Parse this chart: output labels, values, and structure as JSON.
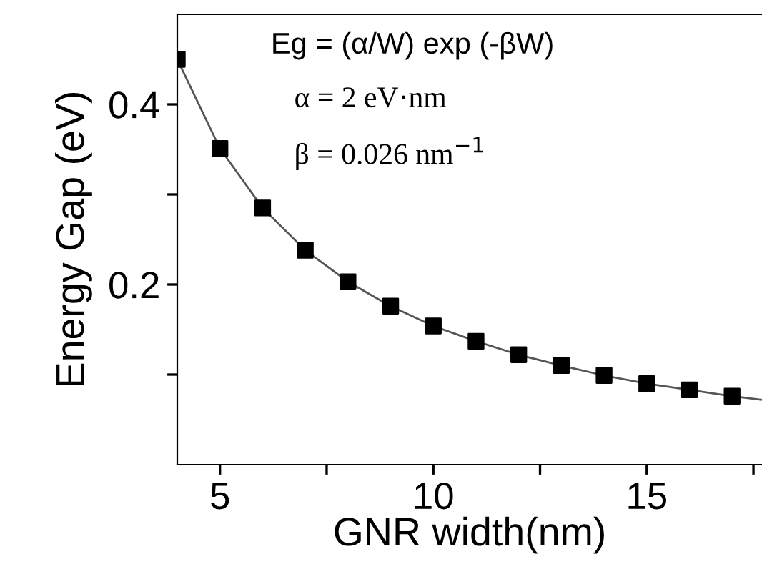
{
  "chart_data": {
    "type": "scatter",
    "xlabel": "GNR width(nm)",
    "ylabel": "Energy Gap (eV)",
    "series": [
      {
        "type": "line",
        "color": "#555555",
        "marker": "none",
        "x": [
          4,
          5,
          6,
          7,
          8,
          9,
          10,
          11,
          12,
          13,
          14,
          15,
          16,
          17,
          17.7
        ],
        "values": [
          0.45,
          0.351,
          0.285,
          0.238,
          0.203,
          0.176,
          0.154,
          0.137,
          0.122,
          0.11,
          0.099,
          0.09,
          0.083,
          0.076,
          0.072
        ]
      },
      {
        "color": "#000000",
        "marker": "square",
        "x": [
          4,
          5,
          6,
          7,
          8,
          9,
          10,
          11,
          12,
          13,
          14,
          15,
          16,
          17
        ],
        "values": [
          0.45,
          0.351,
          0.285,
          0.238,
          0.203,
          0.176,
          0.154,
          0.137,
          0.122,
          0.11,
          0.099,
          0.09,
          0.083,
          0.076
        ]
      }
    ],
    "xlim": [
      4,
      17.7
    ],
    "xticks": [
      5,
      {
        "value": 7.5,
        "label": null
      },
      10,
      {
        "value": 12.5,
        "label": null
      },
      15,
      {
        "value": 17.5,
        "label": null
      }
    ],
    "ylim": [
      0,
      0.5
    ],
    "yticks": [
      {
        "value": 0.1,
        "label": null
      },
      0.2,
      {
        "value": 0.3,
        "label": null
      },
      0.4
    ],
    "annotations": [
      "Eg = (α/W) exp (-βW)",
      "α = 2 eV·nm",
      "β = 0.026 nm$^{−1}$"
    ],
    "grid": false,
    "legend": false
  }
}
